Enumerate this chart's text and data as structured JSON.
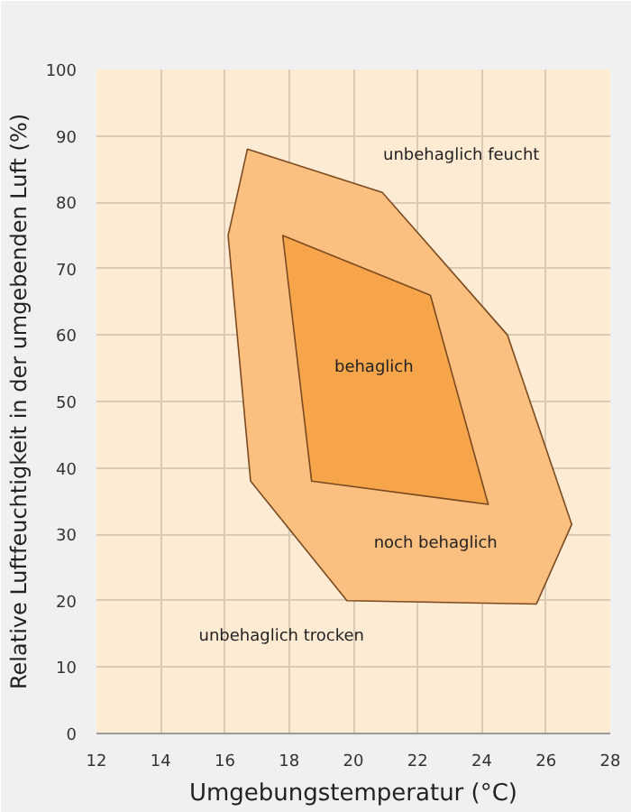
{
  "chart_data": {
    "type": "area",
    "xlabel": "Umgebungstemperatur (°C)",
    "ylabel": "Relative Luftfeuchtigkeit in der umgebenden Luft (%)",
    "xlim": [
      12,
      28
    ],
    "ylim": [
      0,
      100
    ],
    "xticks": [
      12,
      14,
      16,
      18,
      20,
      22,
      24,
      26,
      28
    ],
    "yticks": [
      0,
      10,
      20,
      30,
      40,
      50,
      60,
      70,
      80,
      90,
      100
    ],
    "grid": true,
    "series": [
      {
        "color": "#fbbf80",
        "x": [
          16.7,
          20.9,
          24.8,
          26.8,
          25.7,
          19.8,
          16.8,
          16.1
        ],
        "values": [
          88,
          81.5,
          60,
          31.5,
          19.5,
          20,
          38,
          75
        ]
      },
      {
        "color": "#f7a54a",
        "x": [
          17.8,
          22.4,
          24.2,
          18.7
        ],
        "values": [
          75,
          66,
          34.5,
          38
        ]
      }
    ],
    "annotations": [
      "unbehaglich feucht",
      "behaglich",
      "noch behaglich",
      "unbehaglich trocken"
    ]
  }
}
